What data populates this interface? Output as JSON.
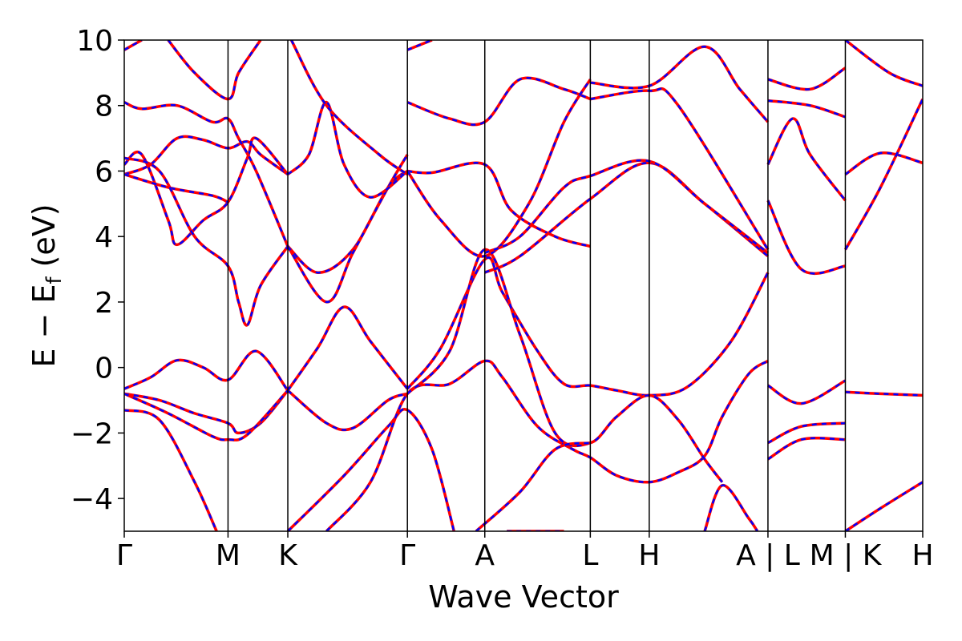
{
  "chart_data": {
    "type": "line",
    "title": "",
    "xlabel": "Wave Vector",
    "ylabel": "E − E",
    "ylabel_subscript": "f",
    "ylabel_unit": " (eV)",
    "ylim": [
      -5,
      10
    ],
    "yticks": [
      -4,
      -2,
      0,
      2,
      4,
      6,
      8,
      10
    ],
    "ytick_labels": [
      "−4",
      "−2",
      "0",
      "2",
      "4",
      "6",
      "8",
      "10"
    ],
    "xlim": [
      0,
      9.08
    ],
    "kpath": [
      {
        "x": 0.0,
        "label": "Γ"
      },
      {
        "x": 1.18,
        "label": "M"
      },
      {
        "x": 1.86,
        "label": "K"
      },
      {
        "x": 3.22,
        "label": "Γ"
      },
      {
        "x": 4.1,
        "label": "A"
      },
      {
        "x": 5.3,
        "label": "L"
      },
      {
        "x": 5.97,
        "label": "H"
      },
      {
        "x": 7.32,
        "label": "A | L"
      },
      {
        "x": 8.2,
        "label": "M | K"
      },
      {
        "x": 9.08,
        "label": "H"
      }
    ],
    "grid": false,
    "legend": "none",
    "colors": {
      "series_a": "#ff0000",
      "series_b": "#0000ff"
    },
    "series": [
      {
        "style": "solid red",
        "bands": [
          [
            [
              0,
              -0.65
            ],
            [
              0.3,
              -0.3
            ],
            [
              0.6,
              0.22
            ],
            [
              0.9,
              0.0
            ],
            [
              1.18,
              -0.38
            ],
            [
              1.5,
              0.5
            ],
            [
              1.86,
              -0.7
            ]
          ],
          [
            [
              0,
              -0.8
            ],
            [
              0.4,
              -1.0
            ],
            [
              0.8,
              -1.4
            ],
            [
              1.18,
              -1.7
            ],
            [
              1.3,
              -2.0
            ],
            [
              1.55,
              -1.7
            ],
            [
              1.86,
              -0.7
            ]
          ],
          [
            [
              0,
              -0.8
            ],
            [
              0.5,
              -1.4
            ],
            [
              1.0,
              -2.1
            ],
            [
              1.18,
              -2.2
            ],
            [
              1.4,
              -2.05
            ],
            [
              1.86,
              -0.7
            ]
          ],
          [
            [
              0,
              -1.3
            ],
            [
              0.4,
              -1.6
            ],
            [
              0.8,
              -3.5
            ],
            [
              1.05,
              -5.0
            ]
          ],
          [
            [
              1.86,
              -0.7
            ],
            [
              2.3,
              -1.7
            ],
            [
              2.6,
              -1.85
            ],
            [
              3.0,
              -1.0
            ],
            [
              3.22,
              -0.8
            ]
          ],
          [
            [
              1.86,
              -0.7
            ],
            [
              2.2,
              0.6
            ],
            [
              2.5,
              1.85
            ],
            [
              2.8,
              0.8
            ],
            [
              3.22,
              -0.65
            ]
          ],
          [
            [
              1.86,
              -5.0
            ],
            [
              2.5,
              -3.3
            ],
            [
              3.0,
              -1.8
            ],
            [
              3.22,
              -1.3
            ],
            [
              3.5,
              -2.5
            ],
            [
              3.75,
              -5.0
            ]
          ],
          [
            [
              2.3,
              -5.0
            ],
            [
              2.8,
              -3.5
            ],
            [
              3.22,
              -0.8
            ],
            [
              3.7,
              -0.5
            ],
            [
              4.1,
              0.2
            ],
            [
              4.3,
              -0.3
            ],
            [
              4.7,
              -1.8
            ],
            [
              5.1,
              -2.5
            ],
            [
              5.3,
              -2.75
            ],
            [
              5.6,
              -3.3
            ],
            [
              5.97,
              -3.5
            ],
            [
              6.3,
              -3.2
            ],
            [
              6.6,
              -2.7
            ],
            [
              6.8,
              -1.5
            ],
            [
              7.1,
              -0.2
            ],
            [
              7.32,
              0.2
            ]
          ],
          [
            [
              3.22,
              -0.65
            ],
            [
              3.6,
              0.6
            ],
            [
              4.1,
              3.3
            ],
            [
              4.3,
              2.3
            ],
            [
              4.7,
              0.5
            ],
            [
              5.0,
              -0.5
            ],
            [
              5.3,
              -0.55
            ],
            [
              5.6,
              -0.7
            ],
            [
              5.97,
              -0.85
            ],
            [
              6.4,
              -0.6
            ],
            [
              6.9,
              0.8
            ],
            [
              7.32,
              2.9
            ]
          ],
          [
            [
              3.22,
              -0.8
            ],
            [
              3.7,
              0.5
            ],
            [
              4.1,
              3.6
            ],
            [
              4.5,
              1.0
            ],
            [
              4.9,
              -2.0
            ],
            [
              5.3,
              -2.3
            ],
            [
              5.6,
              -1.5
            ],
            [
              5.97,
              -0.85
            ],
            [
              6.3,
              -1.6
            ],
            [
              6.6,
              -2.8
            ],
            [
              6.8,
              -3.5
            ]
          ],
          [
            [
              4.0,
              -5.0
            ],
            [
              4.5,
              -3.8
            ],
            [
              4.9,
              -2.5
            ],
            [
              5.3,
              -2.3
            ]
          ],
          [
            [
              4.35,
              -5.0
            ],
            [
              5.0,
              -5.0
            ]
          ],
          [
            [
              6.6,
              -5.0
            ],
            [
              6.8,
              -3.6
            ],
            [
              7.1,
              -4.6
            ],
            [
              7.2,
              -5.0
            ]
          ],
          [
            [
              7.32,
              -0.55
            ],
            [
              7.7,
              -1.1
            ],
            [
              8.2,
              -0.4
            ]
          ],
          [
            [
              7.32,
              -2.3
            ],
            [
              7.7,
              -1.8
            ],
            [
              8.2,
              -1.7
            ]
          ],
          [
            [
              7.32,
              -2.8
            ],
            [
              7.7,
              -2.2
            ],
            [
              8.2,
              -2.2
            ]
          ],
          [
            [
              8.2,
              -0.75
            ],
            [
              8.6,
              -0.8
            ],
            [
              9.08,
              -0.85
            ]
          ],
          [
            [
              8.2,
              -5.0
            ],
            [
              8.6,
              -4.3
            ],
            [
              9.08,
              -3.5
            ]
          ]
        ]
      },
      {
        "style": "dashed blue",
        "bands": "overlay of series_a (identical)"
      }
    ],
    "upper_bands": [
      [
        [
          0,
          5.9
        ],
        [
          0.3,
          6.2
        ],
        [
          0.6,
          7.0
        ],
        [
          0.9,
          6.95
        ],
        [
          1.18,
          6.7
        ],
        [
          1.4,
          6.9
        ],
        [
          1.55,
          6.5
        ],
        [
          1.86,
          5.9
        ]
      ],
      [
        [
          0,
          6.2
        ],
        [
          0.2,
          6.5
        ],
        [
          0.5,
          4.5
        ],
        [
          0.6,
          3.75
        ],
        [
          0.9,
          4.5
        ],
        [
          1.18,
          5.05
        ],
        [
          1.4,
          6.4
        ],
        [
          1.5,
          7.0
        ],
        [
          1.86,
          5.9
        ]
      ],
      [
        [
          0,
          5.9
        ],
        [
          0.5,
          5.5
        ],
        [
          1.0,
          5.25
        ],
        [
          1.18,
          5.05
        ]
      ],
      [
        [
          0,
          6.4
        ],
        [
          0.4,
          6.0
        ],
        [
          0.8,
          4.0
        ],
        [
          1.18,
          3.1
        ],
        [
          1.3,
          2.0
        ],
        [
          1.4,
          1.3
        ],
        [
          1.55,
          2.5
        ],
        [
          1.86,
          3.7
        ]
      ],
      [
        [
          0,
          8.1
        ],
        [
          0.2,
          7.9
        ],
        [
          0.6,
          8.0
        ],
        [
          1.0,
          7.5
        ],
        [
          1.18,
          7.6
        ],
        [
          1.3,
          7.0
        ],
        [
          1.5,
          6.0
        ],
        [
          1.86,
          3.7
        ]
      ],
      [
        [
          0,
          9.7
        ],
        [
          0.2,
          10.0
        ]
      ],
      [
        [
          0.5,
          10.0
        ],
        [
          0.8,
          9.0
        ],
        [
          1.18,
          8.2
        ],
        [
          1.3,
          9.0
        ],
        [
          1.55,
          10.0
        ]
      ],
      [
        [
          1.86,
          3.7
        ],
        [
          2.2,
          2.9
        ],
        [
          2.6,
          3.6
        ],
        [
          3.0,
          5.5
        ],
        [
          3.22,
          6.0
        ]
      ],
      [
        [
          1.86,
          3.7
        ],
        [
          2.3,
          2.0
        ],
        [
          2.6,
          3.5
        ],
        [
          3.0,
          5.5
        ],
        [
          3.22,
          6.5
        ]
      ],
      [
        [
          1.86,
          5.9
        ],
        [
          2.1,
          6.5
        ],
        [
          2.3,
          8.1
        ],
        [
          2.5,
          6.2
        ],
        [
          2.8,
          5.2
        ],
        [
          3.22,
          6.0
        ]
      ],
      [
        [
          1.9,
          10.0
        ],
        [
          2.3,
          8.0
        ],
        [
          2.9,
          6.5
        ],
        [
          3.22,
          5.9
        ]
      ],
      [
        [
          3.22,
          6.0
        ],
        [
          3.5,
          5.95
        ],
        [
          4.1,
          6.2
        ],
        [
          4.4,
          4.8
        ],
        [
          4.9,
          4.0
        ],
        [
          5.3,
          3.7
        ]
      ],
      [
        [
          3.22,
          8.1
        ],
        [
          3.7,
          7.6
        ],
        [
          4.1,
          7.5
        ],
        [
          4.5,
          8.8
        ],
        [
          5.0,
          8.5
        ],
        [
          5.3,
          8.2
        ]
      ],
      [
        [
          3.22,
          9.7
        ],
        [
          3.5,
          10.0
        ]
      ],
      [
        [
          3.22,
          6.0
        ],
        [
          3.6,
          4.5
        ],
        [
          4.1,
          3.4
        ],
        [
          4.6,
          5.0
        ],
        [
          5.0,
          7.5
        ],
        [
          5.3,
          8.8
        ]
      ],
      [
        [
          4.1,
          2.9
        ],
        [
          4.5,
          3.4
        ],
        [
          5.3,
          5.15
        ],
        [
          5.97,
          6.25
        ],
        [
          6.6,
          5.0
        ],
        [
          7.32,
          3.4
        ]
      ],
      [
        [
          4.1,
          3.5
        ],
        [
          4.5,
          4.0
        ],
        [
          5.0,
          5.5
        ],
        [
          5.3,
          5.85
        ],
        [
          5.97,
          6.3
        ],
        [
          6.6,
          5.0
        ],
        [
          7.32,
          3.5
        ]
      ],
      [
        [
          5.3,
          8.7
        ],
        [
          5.97,
          8.6
        ],
        [
          6.6,
          9.8
        ],
        [
          7.0,
          8.5
        ],
        [
          7.32,
          7.5
        ]
      ],
      [
        [
          5.3,
          8.2
        ],
        [
          5.97,
          8.45
        ],
        [
          6.3,
          8.0
        ],
        [
          7.32,
          3.6
        ]
      ],
      [
        [
          7.32,
          6.2
        ],
        [
          7.6,
          7.6
        ],
        [
          7.8,
          6.5
        ],
        [
          8.2,
          5.1
        ]
      ],
      [
        [
          7.32,
          5.1
        ],
        [
          7.7,
          3.0
        ],
        [
          8.2,
          3.1
        ]
      ],
      [
        [
          7.32,
          8.8
        ],
        [
          7.8,
          8.5
        ],
        [
          8.2,
          9.15
        ]
      ],
      [
        [
          7.32,
          8.15
        ],
        [
          7.8,
          8.0
        ],
        [
          8.2,
          7.65
        ]
      ],
      [
        [
          8.2,
          5.9
        ],
        [
          8.6,
          6.55
        ],
        [
          9.08,
          6.25
        ]
      ],
      [
        [
          8.2,
          3.6
        ],
        [
          8.6,
          5.5
        ],
        [
          9.08,
          8.2
        ]
      ],
      [
        [
          8.2,
          10.0
        ],
        [
          8.7,
          9.0
        ],
        [
          9.08,
          8.6
        ]
      ]
    ]
  }
}
